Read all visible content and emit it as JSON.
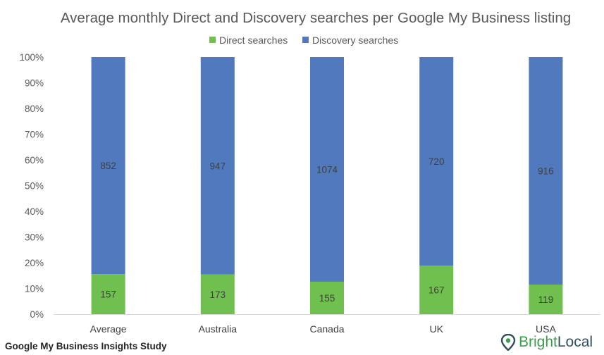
{
  "colors": {
    "direct": "#70c04f",
    "discovery": "#5079be",
    "brand_green": "#3a9e4a",
    "brand_dark": "#2f4f60"
  },
  "footer": {
    "study_title": "Google My Business Insights Study",
    "brand_part1": "Bright",
    "brand_part2": "Local",
    "brand_icon": "map-pin-icon"
  },
  "chart_data": {
    "type": "bar",
    "stacked": "percent",
    "title": "Average monthly Direct and Discovery searches per Google My Business listing",
    "xlabel": "",
    "ylabel": "",
    "ylim": [
      0,
      100
    ],
    "y_ticks": [
      "0%",
      "10%",
      "20%",
      "30%",
      "40%",
      "50%",
      "60%",
      "70%",
      "80%",
      "90%",
      "100%"
    ],
    "categories": [
      "Average",
      "Australia",
      "Canada",
      "UK",
      "USA"
    ],
    "series": [
      {
        "name": "Direct searches",
        "values": [
          157,
          173,
          155,
          167,
          119
        ]
      },
      {
        "name": "Discovery searches",
        "values": [
          852,
          947,
          1074,
          720,
          916
        ]
      }
    ],
    "legend": "top-center",
    "grid": false
  }
}
